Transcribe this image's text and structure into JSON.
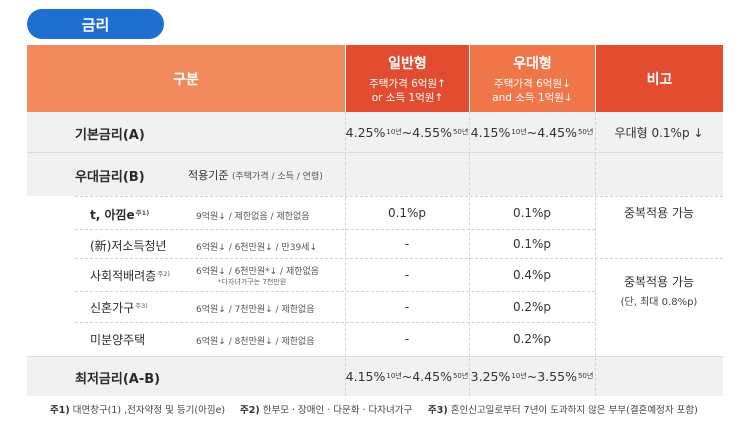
{
  "section_title": "금리",
  "header": {
    "gubun": "구분",
    "general": {
      "title": "일반형",
      "line1": "주택가격 6억원↑",
      "line2": "or 소득 1억원↑"
    },
    "preferential": {
      "title": "우대형",
      "line1": "주택가격 6억원↓",
      "line2": "and 소득 1억원↓"
    },
    "note": "비고"
  },
  "base_rate": {
    "label": "기본금리(A)",
    "general": {
      "low": "4.25%",
      "low_term": "10년",
      "sep": " ~ ",
      "high": "4.55%",
      "high_term": "50년"
    },
    "preferential": {
      "low": "4.15%",
      "low_term": "10년",
      "sep": " ~ ",
      "high": "4.45%",
      "high_term": "50년"
    },
    "note": "우대형 0.1%p ↓"
  },
  "pref_rate": {
    "label": "우대금리(B)",
    "criteria_label": "적용기준",
    "criteria_detail": "(주택가격 / 소득 / 연령)",
    "note_top": "중복적용 가능",
    "note_bottom_1": "중복적용 가능",
    "note_bottom_2": "(단, 최대 0.8%p)",
    "rows": [
      {
        "name": "t, 아낌e",
        "note": "주1)",
        "criteria": "9억원↓ / 제한없음 / 제한없음",
        "criteria_extra": "",
        "general": "0.1%p",
        "preferential": "0.1%p"
      },
      {
        "name": "(新)저소득청년",
        "note": "",
        "criteria": "6억원↓ / 6천만원↓ / 만39세↓",
        "criteria_extra": "",
        "general": "-",
        "preferential": "0.1%p"
      },
      {
        "name": "사회적배려층",
        "note": "주2)",
        "criteria": "6억원↓ / 6천만원*↓ / 제한없음",
        "criteria_extra": "*다자녀가구는 7천만원",
        "general": "-",
        "preferential": "0.4%p"
      },
      {
        "name": "신혼가구",
        "note": "주3)",
        "criteria": "6억원↓ / 7천만원↓ / 제한없음",
        "criteria_extra": "",
        "general": "-",
        "preferential": "0.2%p"
      },
      {
        "name": "미분양주택",
        "note": "",
        "criteria": "6억원↓ / 8천만원↓ / 제한없음",
        "criteria_extra": "",
        "general": "-",
        "preferential": "0.2%p"
      }
    ]
  },
  "min_rate": {
    "label": "최저금리(A-B)",
    "general": {
      "low": "4.15%",
      "low_term": "10년",
      "sep": " ~ ",
      "high": "4.45%",
      "high_term": "50년"
    },
    "preferential": {
      "low": "3.25%",
      "low_term": "10년",
      "sep": " ~ ",
      "high": "3.55%",
      "high_term": "50년"
    }
  },
  "footnotes": [
    {
      "mark": "주1)",
      "text": " 대면창구(1) ,전자약정 및 등기(아낌e)"
    },
    {
      "mark": "주2)",
      "text": " 한부모 · 장애인 · 다문화 · 다자녀가구"
    },
    {
      "mark": "주3)",
      "text": " 혼인신고일로부터 7년이 도과하지 않은 부부(결혼예정자 포함)"
    }
  ],
  "colors": {
    "pill": "#1f6fd0",
    "header_light": "#f08a5d",
    "header_dark": "#e24c31",
    "header_mid": "#f0764a",
    "band": "#f1f1f1"
  }
}
